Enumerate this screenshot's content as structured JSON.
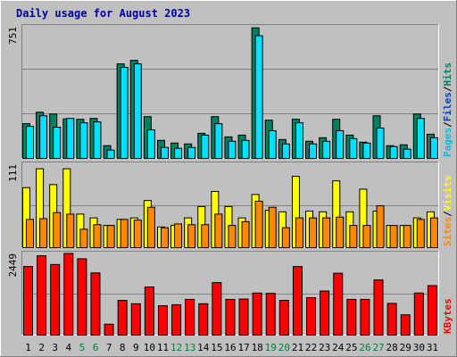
{
  "title": "Daily usage for August 2023",
  "colors": {
    "background": "#c0c0c0",
    "plot": "#c0c0c0",
    "title": "#0000a0",
    "hits": "#008060",
    "files": "#00e0ff",
    "pages": "#00c0e0",
    "visits": "#ffff00",
    "sites": "#ff8800",
    "kbytes": "#ff0000",
    "weekend_label": "#008040",
    "weekday_label": "#000000"
  },
  "chart_data": [
    {
      "type": "bar",
      "ymax_label": "751",
      "legend": [
        "Pages",
        "/",
        "Files",
        "/",
        "Hits"
      ],
      "categories": [
        "1",
        "2",
        "3",
        "4",
        "5",
        "6",
        "7",
        "8",
        "9",
        "10",
        "11",
        "12",
        "13",
        "14",
        "15",
        "16",
        "17",
        "18",
        "19",
        "20",
        "21",
        "22",
        "23",
        "24",
        "25",
        "26",
        "27",
        "28",
        "29",
        "30",
        "31"
      ],
      "weekend_days": [
        "5",
        "6",
        "12",
        "13",
        "19",
        "20",
        "26",
        "27"
      ],
      "ylim": [
        0,
        751
      ],
      "series": [
        {
          "name": "Hits",
          "values": [
            200,
            265,
            255,
            227,
            225,
            230,
            75,
            540,
            560,
            240,
            105,
            90,
            85,
            145,
            240,
            125,
            135,
            745,
            220,
            110,
            225,
            100,
            120,
            225,
            135,
            95,
            245,
            75,
            80,
            255,
            140
          ]
        },
        {
          "name": "Files",
          "values": [
            185,
            245,
            180,
            230,
            205,
            210,
            50,
            520,
            540,
            165,
            65,
            60,
            65,
            135,
            200,
            100,
            105,
            700,
            160,
            85,
            205,
            85,
            100,
            160,
            115,
            90,
            175,
            70,
            55,
            230,
            120
          ]
        },
        {
          "name": "Pages",
          "values": [
            0,
            0,
            0,
            0,
            0,
            0,
            0,
            0,
            0,
            0,
            0,
            0,
            0,
            0,
            0,
            0,
            0,
            0,
            0,
            0,
            0,
            0,
            0,
            0,
            0,
            0,
            0,
            0,
            0,
            0,
            0
          ]
        }
      ]
    },
    {
      "type": "bar",
      "ymax_label": "111",
      "legend": [
        "Sites",
        "/",
        "Visits"
      ],
      "categories": [
        "1",
        "2",
        "3",
        "4",
        "5",
        "6",
        "7",
        "8",
        "9",
        "10",
        "11",
        "12",
        "13",
        "14",
        "15",
        "16",
        "17",
        "18",
        "19",
        "20",
        "21",
        "22",
        "23",
        "24",
        "25",
        "26",
        "27",
        "28",
        "29",
        "30",
        "31"
      ],
      "ylim": [
        0,
        111
      ],
      "series": [
        {
          "name": "Visits",
          "values": [
            80,
            105,
            84,
            105,
            45,
            40,
            30,
            38,
            40,
            63,
            28,
            30,
            40,
            55,
            75,
            55,
            40,
            71,
            50,
            48,
            95,
            49,
            48,
            89,
            48,
            78,
            49,
            30,
            30,
            40,
            48
          ]
        },
        {
          "name": "Sites",
          "values": [
            38,
            39,
            47,
            45,
            25,
            31,
            30,
            38,
            37,
            54,
            27,
            32,
            31,
            31,
            45,
            30,
            35,
            62,
            54,
            27,
            40,
            40,
            40,
            41,
            30,
            30,
            56,
            30,
            30,
            38,
            40
          ]
        }
      ]
    },
    {
      "type": "bar",
      "ymax_label": "2449",
      "legend": [
        "KBytes"
      ],
      "categories": [
        "1",
        "2",
        "3",
        "4",
        "5",
        "6",
        "7",
        "8",
        "9",
        "10",
        "11",
        "12",
        "13",
        "14",
        "15",
        "16",
        "17",
        "18",
        "19",
        "20",
        "21",
        "22",
        "23",
        "24",
        "25",
        "26",
        "27",
        "28",
        "29",
        "30",
        "31"
      ],
      "ylim": [
        0,
        2449
      ],
      "series": [
        {
          "name": "KBytes",
          "values": [
            2060,
            2380,
            2120,
            2449,
            2290,
            1870,
            340,
            1050,
            950,
            1450,
            890,
            920,
            1080,
            950,
            1580,
            1080,
            1090,
            1270,
            1260,
            1050,
            2060,
            1130,
            1330,
            1860,
            1080,
            1080,
            1660,
            960,
            620,
            1270,
            1490
          ]
        }
      ]
    }
  ]
}
